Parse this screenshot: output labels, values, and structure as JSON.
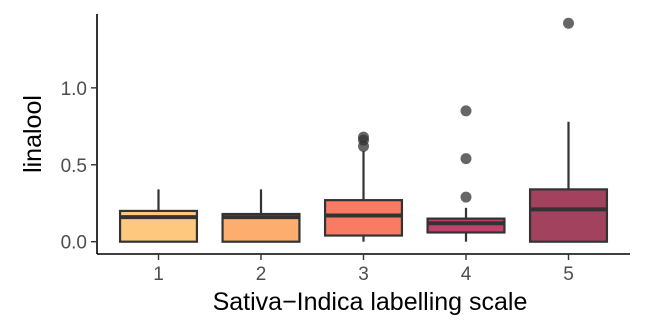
{
  "chart_data": {
    "type": "box",
    "xlabel": "Sativa−Indica labelling scale",
    "ylabel": "linalool",
    "categories": [
      "1",
      "2",
      "3",
      "4",
      "5"
    ],
    "ylim": [
      -0.08,
      1.48
    ],
    "yticks": [
      0.0,
      0.5,
      1.0
    ],
    "ytick_labels": [
      "0.0",
      "0.5",
      "1.0"
    ],
    "grid": false,
    "legend": "none",
    "boxes": [
      {
        "category": "1",
        "whisker_low": 0.0,
        "q1": 0.0,
        "median": 0.16,
        "q3": 0.2,
        "whisker_high": 0.34,
        "outliers": [],
        "color": "#FEC97F"
      },
      {
        "category": "2",
        "whisker_low": 0.0,
        "q1": 0.0,
        "median": 0.16,
        "q3": 0.18,
        "whisker_high": 0.34,
        "outliers": [],
        "color": "#FDAE6F"
      },
      {
        "category": "3",
        "whisker_low": 0.0,
        "q1": 0.04,
        "median": 0.17,
        "q3": 0.27,
        "whisker_high": 0.59,
        "outliers": [
          0.62,
          0.66,
          0.68
        ],
        "color": "#F97B63"
      },
      {
        "category": "4",
        "whisker_low": 0.0,
        "q1": 0.06,
        "median": 0.12,
        "q3": 0.15,
        "whisker_high": 0.22,
        "outliers": [
          0.29,
          0.54,
          0.85
        ],
        "color": "#C2406C"
      },
      {
        "category": "5",
        "whisker_low": 0.0,
        "q1": 0.0,
        "median": 0.21,
        "q3": 0.34,
        "whisker_high": 0.78,
        "outliers": [
          1.42
        ],
        "color": "#A2425E"
      }
    ]
  }
}
